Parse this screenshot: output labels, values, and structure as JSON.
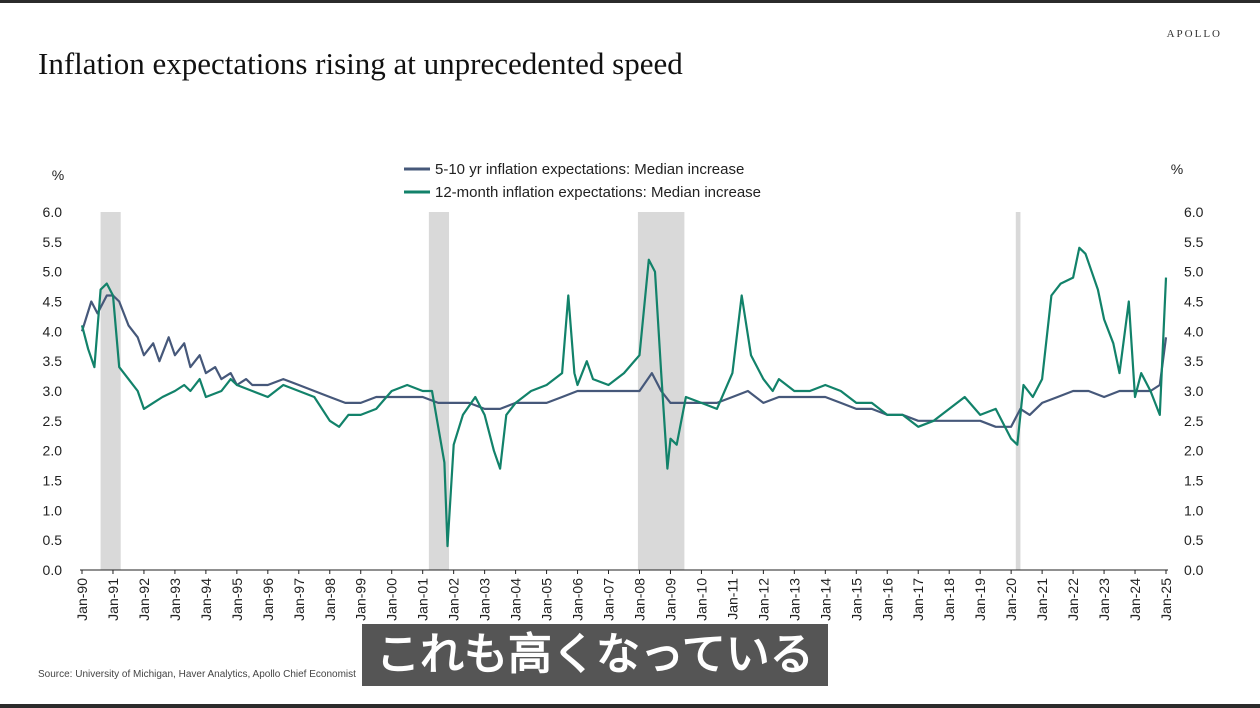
{
  "brand": "APOLLO",
  "title": "Inflation expectations rising at unprecedented speed",
  "source": "Source: University of Michigan, Haver Analytics, Apollo Chief Economist",
  "subtitle_overlay": "これも高くなっている",
  "colors": {
    "long_term": "#46587a",
    "short_term": "#12826a",
    "recession": "#d9d9d9"
  },
  "chart_data": {
    "type": "line",
    "title": "Inflation expectations rising at unprecedented speed",
    "ylabel_left": "%",
    "ylabel_right": "%",
    "ylim": [
      0,
      6
    ],
    "yticks": [
      "0.0",
      "0.5",
      "1.0",
      "1.5",
      "2.0",
      "2.5",
      "3.0",
      "3.5",
      "4.0",
      "4.5",
      "5.0",
      "5.5",
      "6.0"
    ],
    "xticks": [
      "Jan-90",
      "Jan-91",
      "Jan-92",
      "Jan-93",
      "Jan-94",
      "Jan-95",
      "Jan-96",
      "Jan-97",
      "Jan-98",
      "Jan-99",
      "Jan-00",
      "Jan-01",
      "Jan-02",
      "Jan-03",
      "Jan-04",
      "Jan-05",
      "Jan-06",
      "Jan-07",
      "Jan-08",
      "Jan-09",
      "Jan-10",
      "Jan-11",
      "Jan-12",
      "Jan-13",
      "Jan-14",
      "Jan-15",
      "Jan-16",
      "Jan-17",
      "Jan-18",
      "Jan-19",
      "Jan-20",
      "Jan-21",
      "Jan-22",
      "Jan-23",
      "Jan-24",
      "Jan-25"
    ],
    "x_range": [
      1990.0,
      2025.0
    ],
    "grid": false,
    "legend_position": "top-center",
    "recessions": [
      [
        1990.6,
        1991.25
      ],
      [
        2001.2,
        2001.85
      ],
      [
        2007.95,
        2009.45
      ],
      [
        2020.15,
        2020.3
      ]
    ],
    "series": [
      {
        "name": "5-10 yr inflation expectations: Median increase",
        "color": "#46587a",
        "points": [
          [
            1990.0,
            4.0
          ],
          [
            1990.3,
            4.5
          ],
          [
            1990.5,
            4.3
          ],
          [
            1990.8,
            4.6
          ],
          [
            1991.0,
            4.6
          ],
          [
            1991.2,
            4.5
          ],
          [
            1991.5,
            4.1
          ],
          [
            1991.8,
            3.9
          ],
          [
            1992.0,
            3.6
          ],
          [
            1992.3,
            3.8
          ],
          [
            1992.5,
            3.5
          ],
          [
            1992.8,
            3.9
          ],
          [
            1993.0,
            3.6
          ],
          [
            1993.3,
            3.8
          ],
          [
            1993.5,
            3.4
          ],
          [
            1993.8,
            3.6
          ],
          [
            1994.0,
            3.3
          ],
          [
            1994.3,
            3.4
          ],
          [
            1994.5,
            3.2
          ],
          [
            1994.8,
            3.3
          ],
          [
            1995.0,
            3.1
          ],
          [
            1995.3,
            3.2
          ],
          [
            1995.5,
            3.1
          ],
          [
            1996.0,
            3.1
          ],
          [
            1996.5,
            3.2
          ],
          [
            1997.0,
            3.1
          ],
          [
            1997.5,
            3.0
          ],
          [
            1998.0,
            2.9
          ],
          [
            1998.5,
            2.8
          ],
          [
            1999.0,
            2.8
          ],
          [
            1999.5,
            2.9
          ],
          [
            2000.0,
            2.9
          ],
          [
            2000.5,
            2.9
          ],
          [
            2001.0,
            2.9
          ],
          [
            2001.5,
            2.8
          ],
          [
            2002.0,
            2.8
          ],
          [
            2002.5,
            2.8
          ],
          [
            2003.0,
            2.7
          ],
          [
            2003.5,
            2.7
          ],
          [
            2004.0,
            2.8
          ],
          [
            2004.5,
            2.8
          ],
          [
            2005.0,
            2.8
          ],
          [
            2005.5,
            2.9
          ],
          [
            2006.0,
            3.0
          ],
          [
            2006.5,
            3.0
          ],
          [
            2007.0,
            3.0
          ],
          [
            2007.5,
            3.0
          ],
          [
            2008.0,
            3.0
          ],
          [
            2008.4,
            3.3
          ],
          [
            2008.7,
            3.0
          ],
          [
            2009.0,
            2.8
          ],
          [
            2009.5,
            2.8
          ],
          [
            2010.0,
            2.8
          ],
          [
            2010.5,
            2.8
          ],
          [
            2011.0,
            2.9
          ],
          [
            2011.5,
            3.0
          ],
          [
            2012.0,
            2.8
          ],
          [
            2012.5,
            2.9
          ],
          [
            2013.0,
            2.9
          ],
          [
            2013.5,
            2.9
          ],
          [
            2014.0,
            2.9
          ],
          [
            2014.5,
            2.8
          ],
          [
            2015.0,
            2.7
          ],
          [
            2015.5,
            2.7
          ],
          [
            2016.0,
            2.6
          ],
          [
            2016.5,
            2.6
          ],
          [
            2017.0,
            2.5
          ],
          [
            2017.5,
            2.5
          ],
          [
            2018.0,
            2.5
          ],
          [
            2018.5,
            2.5
          ],
          [
            2019.0,
            2.5
          ],
          [
            2019.5,
            2.4
          ],
          [
            2020.0,
            2.4
          ],
          [
            2020.3,
            2.7
          ],
          [
            2020.6,
            2.6
          ],
          [
            2021.0,
            2.8
          ],
          [
            2021.5,
            2.9
          ],
          [
            2022.0,
            3.0
          ],
          [
            2022.5,
            3.0
          ],
          [
            2023.0,
            2.9
          ],
          [
            2023.5,
            3.0
          ],
          [
            2024.0,
            3.0
          ],
          [
            2024.5,
            3.0
          ],
          [
            2024.8,
            3.1
          ],
          [
            2025.0,
            3.9
          ]
        ]
      },
      {
        "name": "12-month inflation expectations: Median increase",
        "color": "#12826a",
        "points": [
          [
            1990.0,
            4.1
          ],
          [
            1990.2,
            3.7
          ],
          [
            1990.4,
            3.4
          ],
          [
            1990.6,
            4.7
          ],
          [
            1990.8,
            4.8
          ],
          [
            1991.0,
            4.6
          ],
          [
            1991.2,
            3.4
          ],
          [
            1991.5,
            3.2
          ],
          [
            1991.8,
            3.0
          ],
          [
            1992.0,
            2.7
          ],
          [
            1992.3,
            2.8
          ],
          [
            1992.6,
            2.9
          ],
          [
            1993.0,
            3.0
          ],
          [
            1993.3,
            3.1
          ],
          [
            1993.5,
            3.0
          ],
          [
            1993.8,
            3.2
          ],
          [
            1994.0,
            2.9
          ],
          [
            1994.5,
            3.0
          ],
          [
            1994.8,
            3.2
          ],
          [
            1995.0,
            3.1
          ],
          [
            1995.5,
            3.0
          ],
          [
            1996.0,
            2.9
          ],
          [
            1996.5,
            3.1
          ],
          [
            1997.0,
            3.0
          ],
          [
            1997.5,
            2.9
          ],
          [
            1998.0,
            2.5
          ],
          [
            1998.3,
            2.4
          ],
          [
            1998.6,
            2.6
          ],
          [
            1999.0,
            2.6
          ],
          [
            1999.5,
            2.7
          ],
          [
            2000.0,
            3.0
          ],
          [
            2000.5,
            3.1
          ],
          [
            2001.0,
            3.0
          ],
          [
            2001.3,
            3.0
          ],
          [
            2001.5,
            2.4
          ],
          [
            2001.7,
            1.8
          ],
          [
            2001.8,
            0.4
          ],
          [
            2002.0,
            2.1
          ],
          [
            2002.3,
            2.6
          ],
          [
            2002.7,
            2.9
          ],
          [
            2003.0,
            2.6
          ],
          [
            2003.3,
            2.0
          ],
          [
            2003.5,
            1.7
          ],
          [
            2003.7,
            2.6
          ],
          [
            2004.0,
            2.8
          ],
          [
            2004.5,
            3.0
          ],
          [
            2005.0,
            3.1
          ],
          [
            2005.5,
            3.3
          ],
          [
            2005.7,
            4.6
          ],
          [
            2005.9,
            3.3
          ],
          [
            2006.0,
            3.1
          ],
          [
            2006.3,
            3.5
          ],
          [
            2006.5,
            3.2
          ],
          [
            2007.0,
            3.1
          ],
          [
            2007.5,
            3.3
          ],
          [
            2008.0,
            3.6
          ],
          [
            2008.3,
            5.2
          ],
          [
            2008.5,
            5.0
          ],
          [
            2008.7,
            3.3
          ],
          [
            2008.9,
            1.7
          ],
          [
            2009.0,
            2.2
          ],
          [
            2009.2,
            2.1
          ],
          [
            2009.5,
            2.9
          ],
          [
            2010.0,
            2.8
          ],
          [
            2010.5,
            2.7
          ],
          [
            2011.0,
            3.3
          ],
          [
            2011.3,
            4.6
          ],
          [
            2011.6,
            3.6
          ],
          [
            2012.0,
            3.2
          ],
          [
            2012.3,
            3.0
          ],
          [
            2012.5,
            3.2
          ],
          [
            2013.0,
            3.0
          ],
          [
            2013.5,
            3.0
          ],
          [
            2014.0,
            3.1
          ],
          [
            2014.5,
            3.0
          ],
          [
            2015.0,
            2.8
          ],
          [
            2015.5,
            2.8
          ],
          [
            2016.0,
            2.6
          ],
          [
            2016.5,
            2.6
          ],
          [
            2017.0,
            2.4
          ],
          [
            2017.5,
            2.5
          ],
          [
            2018.0,
            2.7
          ],
          [
            2018.5,
            2.9
          ],
          [
            2019.0,
            2.6
          ],
          [
            2019.5,
            2.7
          ],
          [
            2020.0,
            2.2
          ],
          [
            2020.2,
            2.1
          ],
          [
            2020.4,
            3.1
          ],
          [
            2020.7,
            2.9
          ],
          [
            2021.0,
            3.2
          ],
          [
            2021.3,
            4.6
          ],
          [
            2021.6,
            4.8
          ],
          [
            2022.0,
            4.9
          ],
          [
            2022.2,
            5.4
          ],
          [
            2022.4,
            5.3
          ],
          [
            2022.6,
            5.0
          ],
          [
            2022.8,
            4.7
          ],
          [
            2023.0,
            4.2
          ],
          [
            2023.3,
            3.8
          ],
          [
            2023.5,
            3.3
          ],
          [
            2023.8,
            4.5
          ],
          [
            2024.0,
            2.9
          ],
          [
            2024.2,
            3.3
          ],
          [
            2024.5,
            3.0
          ],
          [
            2024.8,
            2.6
          ],
          [
            2025.0,
            4.9
          ]
        ]
      }
    ]
  }
}
